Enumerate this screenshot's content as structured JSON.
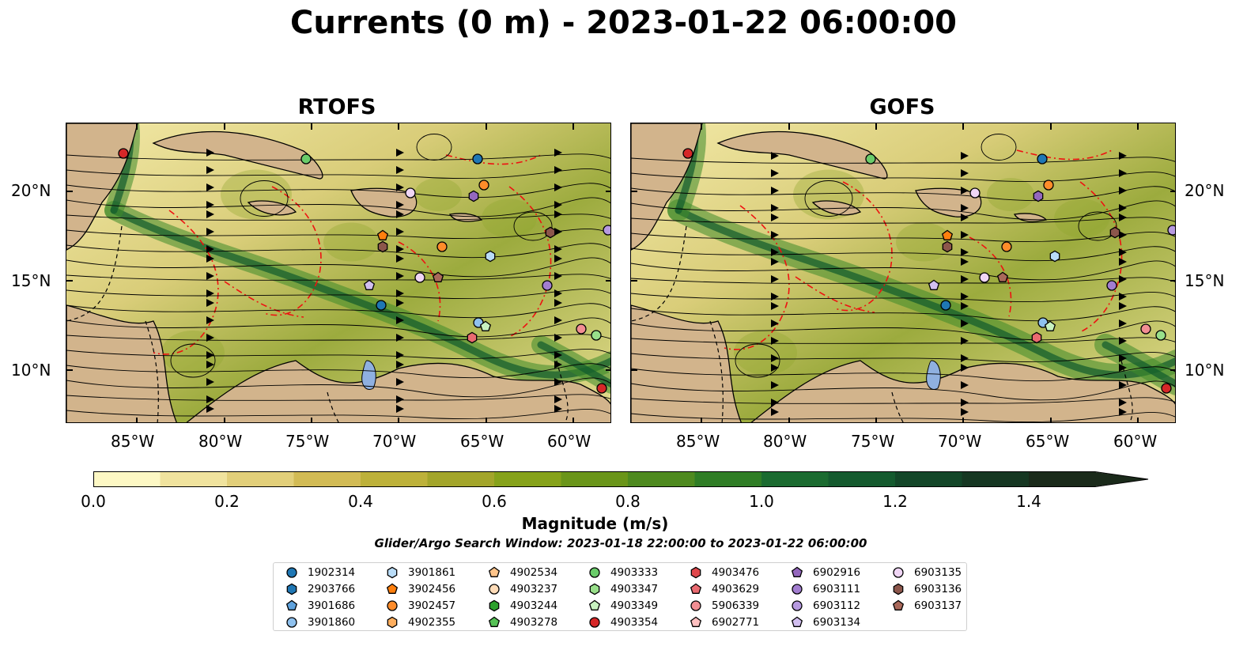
{
  "title": "Currents (0 m) - 2023-01-22 06:00:00",
  "panels": [
    {
      "title": "RTOFS"
    },
    {
      "title": "GOFS"
    }
  ],
  "axes": {
    "lat_ticks": [
      "20°N",
      "15°N",
      "10°N"
    ],
    "lon_ticks": [
      "85°W",
      "80°W",
      "75°W",
      "70°W",
      "65°W",
      "60°W"
    ]
  },
  "colorbar": {
    "label": "Magnitude (m/s)",
    "tick_labels": [
      "0.0",
      "0.2",
      "0.4",
      "0.6",
      "0.8",
      "1.0",
      "1.2",
      "1.4"
    ],
    "range": [
      0,
      1.5
    ],
    "colors": [
      "#fdf8c4",
      "#f0e39e",
      "#e2cf7a",
      "#d2bb55",
      "#bdb13a",
      "#a3a52a",
      "#86a21a",
      "#6a9519",
      "#4e8a1f",
      "#2f7d25",
      "#1b6b30",
      "#145a2e",
      "#134628",
      "#163722",
      "#1a2a1a"
    ]
  },
  "search_window": "Glider/Argo Search Window: 2023-01-18 22:00:00 to 2023-01-22 06:00:00",
  "legend": [
    {
      "id": "1902314",
      "shape": "circle",
      "color": "#1f77b4"
    },
    {
      "id": "2903766",
      "shape": "hexagon",
      "color": "#1f77b4"
    },
    {
      "id": "3901686",
      "shape": "pentagon",
      "color": "#5fa2dd"
    },
    {
      "id": "3901860",
      "shape": "circle",
      "color": "#8fc1ee"
    },
    {
      "id": "3901861",
      "shape": "hexagon",
      "color": "#b9dcf7"
    },
    {
      "id": "3902456",
      "shape": "pentagon",
      "color": "#ff7f0e"
    },
    {
      "id": "3902457",
      "shape": "circle",
      "color": "#ff8c2a"
    },
    {
      "id": "4902355",
      "shape": "hexagon",
      "color": "#ffae5e"
    },
    {
      "id": "4902534",
      "shape": "pentagon",
      "color": "#ffc48a"
    },
    {
      "id": "4903237",
      "shape": "circle",
      "color": "#ffdcb8"
    },
    {
      "id": "4903244",
      "shape": "hexagon",
      "color": "#2ca02c"
    },
    {
      "id": "4903278",
      "shape": "pentagon",
      "color": "#55c155"
    },
    {
      "id": "4903333",
      "shape": "circle",
      "color": "#6acc6a"
    },
    {
      "id": "4903347",
      "shape": "hexagon",
      "color": "#98df8a"
    },
    {
      "id": "4903349",
      "shape": "pentagon",
      "color": "#c8f2c0"
    },
    {
      "id": "4903354",
      "shape": "circle",
      "color": "#d62728"
    },
    {
      "id": "4903476",
      "shape": "hexagon",
      "color": "#e0474b"
    },
    {
      "id": "4903629",
      "shape": "pentagon",
      "color": "#ea6a70"
    },
    {
      "id": "5906339",
      "shape": "circle",
      "color": "#f28e93"
    },
    {
      "id": "6902771",
      "shape": "pentagon",
      "color": "#ffc0c0"
    },
    {
      "id": "6902916",
      "shape": "pentagon",
      "color": "#9467bd"
    },
    {
      "id": "6903111",
      "shape": "circle",
      "color": "#a27dd0"
    },
    {
      "id": "6903112",
      "shape": "circle",
      "color": "#b79ae0"
    },
    {
      "id": "6903134",
      "shape": "pentagon",
      "color": "#d2bff0"
    },
    {
      "id": "6903135",
      "shape": "circle",
      "color": "#f0d6f5"
    },
    {
      "id": "6903136",
      "shape": "hexagon",
      "color": "#8c564b"
    },
    {
      "id": "6903137",
      "shape": "pentagon",
      "color": "#a9685a"
    }
  ]
}
